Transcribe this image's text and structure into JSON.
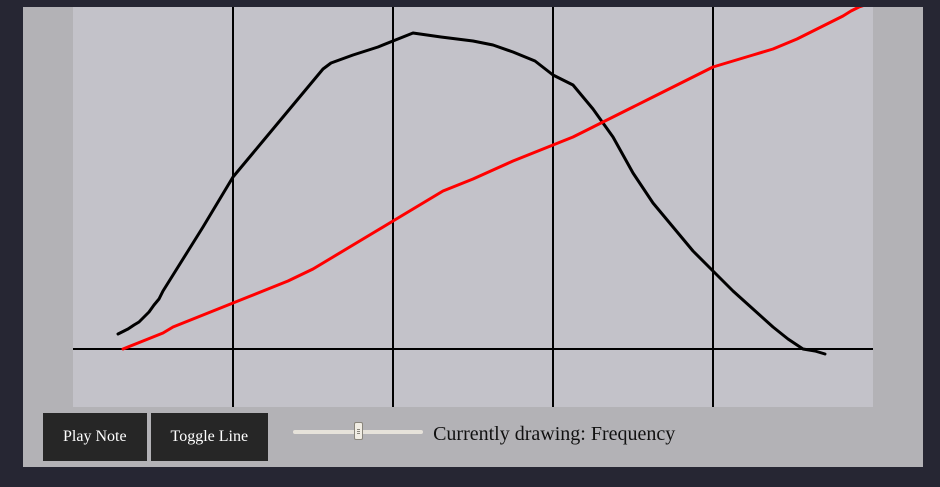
{
  "controls": {
    "play_label": "Play Note",
    "toggle_label": "Toggle Line",
    "slider_value": 0.5,
    "status_text": "Currently drawing: Frequency"
  },
  "colors": {
    "background": "#262633",
    "frame": "#b3b2b6",
    "canvas": "#c3c2c9",
    "button_bg": "#262626",
    "button_text": "#ffffff",
    "curve_black": "#000000",
    "curve_red": "#ff0000"
  },
  "chart_data": {
    "type": "line",
    "grid": true,
    "xlim": [
      0,
      800
    ],
    "ylim": [
      -58,
      342
    ],
    "series": [
      {
        "color": "#000000",
        "x": [
          45,
          51,
          55,
          61,
          66,
          71,
          76,
          81,
          86,
          90,
          95,
          100,
          115,
          130,
          145,
          160,
          175,
          190,
          205,
          220,
          235,
          250,
          258,
          280,
          305,
          340,
          368,
          400,
          420,
          440,
          462,
          480,
          500,
          520,
          540,
          560,
          580,
          600,
          620,
          640,
          660,
          680,
          700,
          715,
          730,
          742,
          752
        ],
        "y": [
          15,
          18,
          20,
          24,
          27,
          32,
          37,
          44,
          50,
          58,
          66,
          74,
          98,
          122,
          147,
          172,
          190,
          208,
          226,
          244,
          262,
          280,
          286,
          294,
          302,
          316,
          312,
          308,
          304,
          297,
          288,
          274,
          264,
          240,
          212,
          176,
          146,
          122,
          98,
          78,
          58,
          40,
          22,
          10,
          0,
          -2,
          -5
        ]
      },
      {
        "color": "#ff0000",
        "x": [
          50,
          65,
          80,
          90,
          100,
          115,
          130,
          145,
          160,
          175,
          195,
          215,
          240,
          260,
          280,
          300,
          320,
          340,
          355,
          370,
          385,
          400,
          420,
          440,
          460,
          480,
          500,
          520,
          540,
          560,
          580,
          600,
          620,
          640,
          660,
          680,
          700,
          712,
          724,
          736,
          748,
          760,
          770,
          778,
          786,
          792,
          798,
          800
        ],
        "y": [
          0,
          6,
          12,
          16,
          22,
          28,
          34,
          40,
          46,
          52,
          60,
          68,
          80,
          92,
          104,
          116,
          128,
          140,
          149,
          158,
          164,
          170,
          179,
          188,
          196,
          204,
          212,
          222,
          232,
          242,
          252,
          262,
          272,
          282,
          288,
          294,
          300,
          305,
          310,
          316,
          322,
          328,
          333,
          338,
          342,
          344,
          345,
          345
        ]
      }
    ],
    "axes": {
      "horizontal_line_y": 0,
      "vertical_lines_x": [
        160,
        320,
        480,
        640
      ]
    }
  }
}
